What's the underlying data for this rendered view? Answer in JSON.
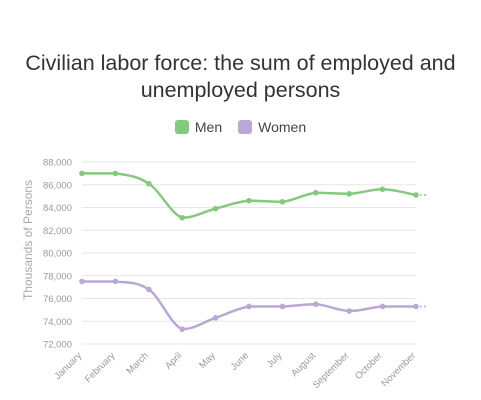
{
  "chart_data": {
    "type": "line",
    "title_lines": [
      "Civilian labor force: the sum of employed and",
      "unemployed persons"
    ],
    "ylabel": "Thousands of Persons",
    "xlabel": "",
    "categories": [
      "January",
      "February",
      "March",
      "April",
      "May",
      "June",
      "July",
      "August",
      "September",
      "October",
      "November"
    ],
    "series": [
      {
        "name": "Men",
        "color": "#85c97f",
        "values": [
          87000,
          87000,
          86100,
          83100,
          83900,
          84600,
          84500,
          85300,
          85200,
          85600,
          85100
        ]
      },
      {
        "name": "Women",
        "color": "#b9a8d4",
        "values": [
          77500,
          77500,
          76800,
          73300,
          74300,
          75300,
          75300,
          75500,
          74900,
          75300,
          75300
        ]
      }
    ],
    "ylim": [
      72000,
      88000
    ],
    "yticks": [
      "72,000",
      "74,000",
      "76,000",
      "78,000",
      "80,000",
      "82,000",
      "84,000",
      "86,000",
      "88,000"
    ],
    "grid": true,
    "legend": "top-center"
  }
}
